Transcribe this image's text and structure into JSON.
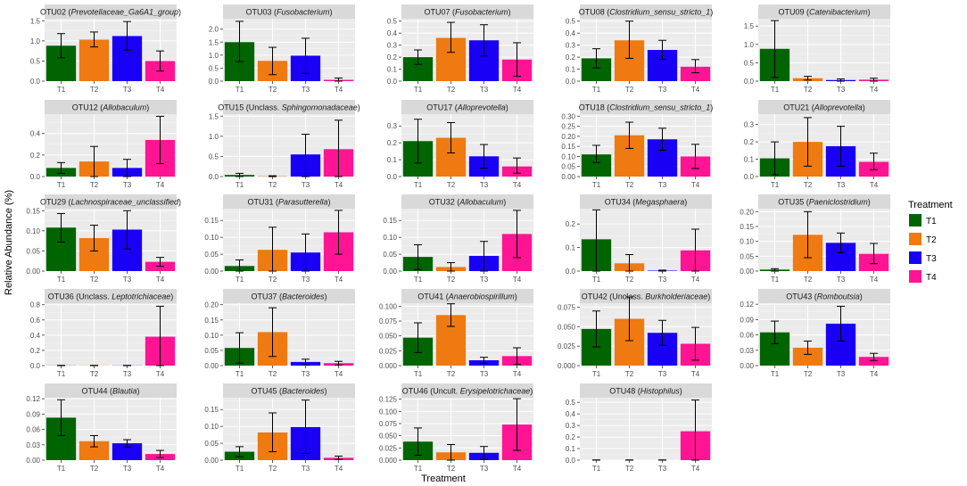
{
  "chart_data": {
    "type": "bar",
    "xlabel": "Treatment",
    "ylabel": "Relative Abundance (%)",
    "categories": [
      "T1",
      "T2",
      "T3",
      "T4"
    ],
    "colors": [
      "#006400",
      "#ee7a11",
      "#1900f5",
      "#ff1493"
    ],
    "legend": {
      "title": "Treatment",
      "position": "right",
      "items": [
        {
          "label": "T1",
          "color": "#006400"
        },
        {
          "label": "T2",
          "color": "#ee7a11"
        },
        {
          "label": "T3",
          "color": "#1900f5"
        },
        {
          "label": "T4",
          "color": "#ff1493"
        }
      ]
    },
    "panels": [
      {
        "title_plain": "OTU02 (",
        "title_italic": "Prevotellaceae_Ga6A1_group",
        "title_end": ")",
        "ylim": [
          0,
          1.55
        ],
        "ticks": [
          "0.0",
          "0.5",
          "1.0",
          "1.5"
        ],
        "tick_values": [
          0,
          0.5,
          1.0,
          1.5
        ],
        "values": [
          0.88,
          1.03,
          1.12,
          0.5
        ],
        "err": [
          [
            0.58,
            1.18
          ],
          [
            0.85,
            1.22
          ],
          [
            0.77,
            1.48
          ],
          [
            0.25,
            0.75
          ]
        ]
      },
      {
        "title_plain": "OTU03 (",
        "title_italic": "Fusobacterium",
        "title_end": ")",
        "ylim": [
          0,
          2.4
        ],
        "ticks": [
          "0.0",
          "0.5",
          "1.0",
          "1.5",
          "2.0"
        ],
        "tick_values": [
          0,
          0.5,
          1.0,
          1.5,
          2.0
        ],
        "values": [
          1.5,
          0.78,
          0.98,
          0.05
        ],
        "err": [
          [
            0.75,
            2.3
          ],
          [
            0.25,
            1.3
          ],
          [
            0.3,
            1.65
          ],
          [
            0.0,
            0.12
          ]
        ]
      },
      {
        "title_plain": "OTU07 (",
        "title_italic": "Fusobacterium",
        "title_end": ")",
        "ylim": [
          0,
          0.52
        ],
        "ticks": [
          "0.0",
          "0.1",
          "0.2",
          "0.3",
          "0.4",
          "0.5"
        ],
        "tick_values": [
          0,
          0.1,
          0.2,
          0.3,
          0.4,
          0.5
        ],
        "values": [
          0.2,
          0.36,
          0.34,
          0.18
        ],
        "err": [
          [
            0.14,
            0.26
          ],
          [
            0.24,
            0.49
          ],
          [
            0.21,
            0.47
          ],
          [
            0.04,
            0.32
          ]
        ]
      },
      {
        "title_plain": "OTU08 (",
        "title_italic": "Clostridium_sensu_stricto_1",
        "title_end": ")",
        "ylim": [
          0,
          0.52
        ],
        "ticks": [
          "0.0",
          "0.1",
          "0.2",
          "0.3",
          "0.4",
          "0.5"
        ],
        "tick_values": [
          0,
          0.1,
          0.2,
          0.3,
          0.4,
          0.5
        ],
        "values": [
          0.19,
          0.34,
          0.26,
          0.12
        ],
        "err": [
          [
            0.11,
            0.27
          ],
          [
            0.19,
            0.5
          ],
          [
            0.18,
            0.34
          ],
          [
            0.07,
            0.18
          ]
        ]
      },
      {
        "title_plain": "OTU09 (",
        "title_italic": "Catenibacterium",
        "title_end": ")",
        "ylim": [
          0,
          1.7
        ],
        "ticks": [
          "0.0",
          "0.5",
          "1.0",
          "1.5"
        ],
        "tick_values": [
          0,
          0.5,
          1.0,
          1.5
        ],
        "values": [
          0.88,
          0.08,
          0.03,
          0.04
        ],
        "err": [
          [
            0.1,
            1.65
          ],
          [
            0.03,
            0.13
          ],
          [
            0.0,
            0.06
          ],
          [
            0.0,
            0.08
          ]
        ]
      },
      {
        "title_plain": "OTU12 (",
        "title_italic": "Allobaculum",
        "title_end": ")",
        "ylim": [
          0,
          0.58
        ],
        "ticks": [
          "0.0",
          "0.2",
          "0.4"
        ],
        "tick_values": [
          0,
          0.2,
          0.4
        ],
        "values": [
          0.08,
          0.14,
          0.08,
          0.34
        ],
        "err": [
          [
            0.03,
            0.13
          ],
          [
            0.0,
            0.28
          ],
          [
            0.0,
            0.16
          ],
          [
            0.12,
            0.56
          ]
        ]
      },
      {
        "title_plain": "OTU15 (Unclass. ",
        "title_italic": "Sphingomonadaceae",
        "title_end": ")",
        "ylim": [
          0,
          1.55
        ],
        "ticks": [
          "0.0",
          "0.5",
          "1.0",
          "1.5"
        ],
        "tick_values": [
          0,
          0.5,
          1.0,
          1.5
        ],
        "values": [
          0.04,
          0.01,
          0.55,
          0.68
        ],
        "err": [
          [
            0.0,
            0.08
          ],
          [
            0.0,
            0.02
          ],
          [
            0.0,
            1.05
          ],
          [
            0.0,
            1.4
          ]
        ]
      },
      {
        "title_plain": "OTU17 (",
        "title_italic": "Alloprevotella",
        "title_end": ")",
        "ylim": [
          0,
          0.37
        ],
        "ticks": [
          "0.0",
          "0.1",
          "0.2",
          "0.3"
        ],
        "tick_values": [
          0,
          0.1,
          0.2,
          0.3
        ],
        "values": [
          0.21,
          0.23,
          0.12,
          0.06
        ],
        "err": [
          [
            0.08,
            0.34
          ],
          [
            0.14,
            0.32
          ],
          [
            0.05,
            0.19
          ],
          [
            0.02,
            0.11
          ]
        ]
      },
      {
        "title_plain": "OTU18 (",
        "title_italic": "Clostridium_sensu_stricto_1",
        "title_end": ")",
        "ylim": [
          0,
          0.31
        ],
        "ticks": [
          "0.00",
          "0.05",
          "0.10",
          "0.15",
          "0.20",
          "0.25",
          "0.30"
        ],
        "tick_values": [
          0,
          0.05,
          0.1,
          0.15,
          0.2,
          0.25,
          0.3
        ],
        "values": [
          0.11,
          0.205,
          0.185,
          0.1
        ],
        "err": [
          [
            0.07,
            0.155
          ],
          [
            0.14,
            0.27
          ],
          [
            0.13,
            0.24
          ],
          [
            0.04,
            0.16
          ]
        ]
      },
      {
        "title_plain": "OTU21 (",
        "title_italic": "Alloprevotella",
        "title_end": ")",
        "ylim": [
          0,
          0.36
        ],
        "ticks": [
          "0.0",
          "0.1",
          "0.2",
          "0.3"
        ],
        "tick_values": [
          0,
          0.1,
          0.2,
          0.3
        ],
        "values": [
          0.105,
          0.2,
          0.175,
          0.085
        ],
        "err": [
          [
            0.01,
            0.2
          ],
          [
            0.06,
            0.34
          ],
          [
            0.06,
            0.29
          ],
          [
            0.04,
            0.135
          ]
        ]
      },
      {
        "title_plain": "OTU29 (",
        "title_italic": "Lachnospiraceae_unclassified",
        "title_end": ")",
        "ylim": [
          0,
          0.155
        ],
        "ticks": [
          "0.00",
          "0.05",
          "0.10",
          "0.15"
        ],
        "tick_values": [
          0,
          0.05,
          0.1,
          0.15
        ],
        "values": [
          0.108,
          0.082,
          0.103,
          0.023
        ],
        "err": [
          [
            0.072,
            0.143
          ],
          [
            0.05,
            0.114
          ],
          [
            0.055,
            0.15
          ],
          [
            0.012,
            0.034
          ]
        ]
      },
      {
        "title_plain": "OTU31 (",
        "title_italic": "Parasutterella",
        "title_end": ")",
        "ylim": [
          0,
          0.185
        ],
        "ticks": [
          "0.00",
          "0.05",
          "0.10",
          "0.15"
        ],
        "tick_values": [
          0,
          0.05,
          0.1,
          0.15
        ],
        "values": [
          0.015,
          0.063,
          0.055,
          0.115
        ],
        "err": [
          [
            0.0,
            0.033
          ],
          [
            0.0,
            0.13
          ],
          [
            0.0,
            0.11
          ],
          [
            0.05,
            0.18
          ]
        ]
      },
      {
        "title_plain": "OTU32 (",
        "title_italic": "Allobaculum",
        "title_end": ")",
        "ylim": [
          0,
          0.185
        ],
        "ticks": [
          "0.00",
          "0.05",
          "0.10",
          "0.15"
        ],
        "tick_values": [
          0,
          0.05,
          0.1,
          0.15
        ],
        "values": [
          0.042,
          0.012,
          0.045,
          0.11
        ],
        "err": [
          [
            0.005,
            0.078
          ],
          [
            0.0,
            0.025
          ],
          [
            0.0,
            0.088
          ],
          [
            0.04,
            0.18
          ]
        ]
      },
      {
        "title_plain": "OTU34 (",
        "title_italic": "Megasphaera",
        "title_end": ")",
        "ylim": [
          0,
          0.265
        ],
        "ticks": [
          "0.0",
          "0.1",
          "0.2"
        ],
        "tick_values": [
          0,
          0.1,
          0.2
        ],
        "values": [
          0.135,
          0.033,
          0.002,
          0.088
        ],
        "err": [
          [
            0.0,
            0.26
          ],
          [
            0.0,
            0.07
          ],
          [
            0.0,
            0.004
          ],
          [
            0.0,
            0.178
          ]
        ]
      },
      {
        "title_plain": "OTU35 (",
        "title_italic": "Paeniclostridium",
        "title_end": ")",
        "ylim": [
          0,
          0.21
        ],
        "ticks": [
          "0.00",
          "0.05",
          "0.10",
          "0.15",
          "0.20"
        ],
        "tick_values": [
          0,
          0.05,
          0.1,
          0.15,
          0.2
        ],
        "values": [
          0.005,
          0.122,
          0.095,
          0.058
        ],
        "err": [
          [
            0.0,
            0.008
          ],
          [
            0.045,
            0.2
          ],
          [
            0.062,
            0.128
          ],
          [
            0.025,
            0.093
          ]
        ]
      },
      {
        "title_plain": "OTU36 (Unclass. ",
        "title_italic": "Leptotrichiaceae",
        "title_end": ")",
        "ylim": [
          0,
          0.82
        ],
        "ticks": [
          "0.0",
          "0.2",
          "0.4",
          "0.6",
          "0.8"
        ],
        "tick_values": [
          0,
          0.2,
          0.4,
          0.6,
          0.8
        ],
        "values": [
          0.002,
          0.002,
          0.002,
          0.38
        ],
        "err": [
          [
            0.0,
            0.004
          ],
          [
            0.0,
            0.004
          ],
          [
            0.0,
            0.004
          ],
          [
            0.0,
            0.78
          ]
        ]
      },
      {
        "title_plain": "OTU37 (",
        "title_italic": "Bacteroides",
        "title_end": ")",
        "ylim": [
          0,
          0.205
        ],
        "ticks": [
          "0.00",
          "0.05",
          "0.10",
          "0.15",
          "0.20"
        ],
        "tick_values": [
          0,
          0.05,
          0.1,
          0.15,
          0.2
        ],
        "values": [
          0.058,
          0.11,
          0.012,
          0.008
        ],
        "err": [
          [
            0.008,
            0.108
          ],
          [
            0.03,
            0.19
          ],
          [
            0.003,
            0.021
          ],
          [
            0.002,
            0.014
          ]
        ]
      },
      {
        "title_plain": "OTU41 (",
        "title_italic": "Anaerobiospirillum",
        "title_end": ")",
        "ylim": [
          0,
          0.105
        ],
        "ticks": [
          "0.000",
          "0.025",
          "0.050",
          "0.075",
          "0.100"
        ],
        "tick_values": [
          0,
          0.025,
          0.05,
          0.075,
          0.1
        ],
        "values": [
          0.047,
          0.085,
          0.009,
          0.016
        ],
        "err": [
          [
            0.022,
            0.072
          ],
          [
            0.066,
            0.104
          ],
          [
            0.004,
            0.014
          ],
          [
            0.002,
            0.03
          ]
        ]
      },
      {
        "title_plain": "OTU42 (Unclass. ",
        "title_italic": "Burkholderiaceae",
        "title_end": ")",
        "ylim": [
          0,
          0.08
        ],
        "ticks": [
          "0.000",
          "0.025",
          "0.050",
          "0.075"
        ],
        "tick_values": [
          0,
          0.025,
          0.05,
          0.075
        ],
        "values": [
          0.047,
          0.06,
          0.042,
          0.028
        ],
        "err": [
          [
            0.024,
            0.07
          ],
          [
            0.032,
            0.088
          ],
          [
            0.026,
            0.058
          ],
          [
            0.007,
            0.049
          ]
        ]
      },
      {
        "title_plain": "OTU43 (",
        "title_italic": "Romboutsia",
        "title_end": ")",
        "ylim": [
          0,
          0.122
        ],
        "ticks": [
          "0.00",
          "0.03",
          "0.06",
          "0.09",
          "0.12"
        ],
        "tick_values": [
          0,
          0.03,
          0.06,
          0.09,
          0.12
        ],
        "values": [
          0.065,
          0.035,
          0.082,
          0.017
        ],
        "err": [
          [
            0.043,
            0.087
          ],
          [
            0.022,
            0.048
          ],
          [
            0.048,
            0.116
          ],
          [
            0.01,
            0.024
          ]
        ]
      },
      {
        "title_plain": "OTU44 (",
        "title_italic": "Blautia",
        "title_end": ")",
        "ylim": [
          0,
          0.122
        ],
        "ticks": [
          "0.00",
          "0.03",
          "0.06",
          "0.09",
          "0.12"
        ],
        "tick_values": [
          0,
          0.03,
          0.06,
          0.09,
          0.12
        ],
        "values": [
          0.083,
          0.037,
          0.033,
          0.012
        ],
        "err": [
          [
            0.048,
            0.118
          ],
          [
            0.026,
            0.048
          ],
          [
            0.026,
            0.04
          ],
          [
            0.005,
            0.019
          ]
        ]
      },
      {
        "title_plain": "OTU45 (",
        "title_italic": "Bacteroides",
        "title_end": ")",
        "ylim": [
          0,
          0.185
        ],
        "ticks": [
          "0.00",
          "0.05",
          "0.10",
          "0.15"
        ],
        "tick_values": [
          0,
          0.05,
          0.1,
          0.15
        ],
        "values": [
          0.025,
          0.082,
          0.098,
          0.007
        ],
        "err": [
          [
            0.01,
            0.04
          ],
          [
            0.025,
            0.14
          ],
          [
            0.02,
            0.178
          ],
          [
            0.002,
            0.012
          ]
        ]
      },
      {
        "title_plain": "OTU46 (Uncult. ",
        "title_italic": "Erysipelotrichaceae",
        "title_end": ")",
        "ylim": [
          0,
          0.128
        ],
        "ticks": [
          "0.000",
          "0.025",
          "0.050",
          "0.075",
          "0.100",
          "0.125"
        ],
        "tick_values": [
          0,
          0.025,
          0.05,
          0.075,
          0.1,
          0.125
        ],
        "values": [
          0.038,
          0.016,
          0.015,
          0.073
        ],
        "err": [
          [
            0.01,
            0.066
          ],
          [
            0.0,
            0.032
          ],
          [
            0.002,
            0.028
          ],
          [
            0.02,
            0.126
          ]
        ]
      },
      {
        "title_plain": "OTU48 (",
        "title_italic": "Histophilus",
        "title_end": ")",
        "ylim": [
          0,
          0.54
        ],
        "ticks": [
          "0.0",
          "0.1",
          "0.2",
          "0.3",
          "0.4",
          "0.5"
        ],
        "tick_values": [
          0,
          0.1,
          0.2,
          0.3,
          0.4,
          0.5
        ],
        "values": [
          0.0,
          0.0,
          0.0,
          0.25
        ],
        "err": [
          [
            0.0,
            0.002
          ],
          [
            0.0,
            0.002
          ],
          [
            0.0,
            0.002
          ],
          [
            0.0,
            0.52
          ]
        ]
      }
    ]
  }
}
